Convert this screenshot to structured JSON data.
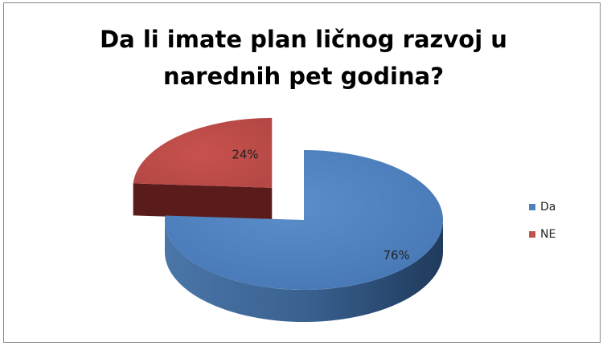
{
  "chart_data": {
    "type": "pie",
    "title_lines": [
      "Da li imate plan ličnog razvoj u",
      "narednih pet godina?"
    ],
    "categories": [
      "Da",
      "NE"
    ],
    "values": [
      76,
      24
    ],
    "labels": [
      "76%",
      "24%"
    ],
    "colors": [
      "#4F81BD",
      "#C0504D"
    ],
    "exploded": "NE",
    "legend_position": "right"
  }
}
